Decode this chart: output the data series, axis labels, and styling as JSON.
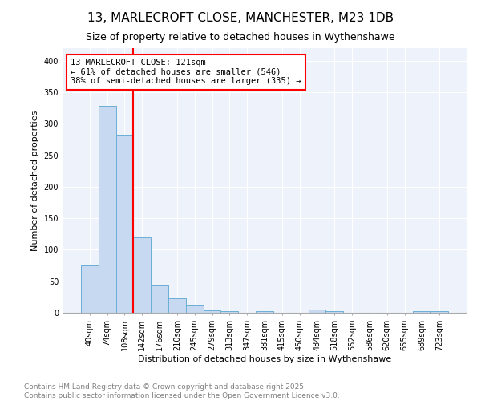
{
  "title": "13, MARLECROFT CLOSE, MANCHESTER, M23 1DB",
  "subtitle": "Size of property relative to detached houses in Wythenshawe",
  "xlabel": "Distribution of detached houses by size in Wythenshawe",
  "ylabel": "Number of detached properties",
  "bar_labels": [
    "40sqm",
    "74sqm",
    "108sqm",
    "142sqm",
    "176sqm",
    "210sqm",
    "245sqm",
    "279sqm",
    "313sqm",
    "347sqm",
    "381sqm",
    "415sqm",
    "450sqm",
    "484sqm",
    "518sqm",
    "552sqm",
    "586sqm",
    "620sqm",
    "655sqm",
    "689sqm",
    "723sqm"
  ],
  "bar_values": [
    75,
    328,
    283,
    120,
    44,
    23,
    13,
    4,
    3,
    0,
    3,
    0,
    0,
    5,
    2,
    0,
    0,
    0,
    0,
    2,
    3
  ],
  "bar_color": "#c6d9f1",
  "bar_edge_color": "#6baed6",
  "redline_x": 2.5,
  "annotation_text": "13 MARLECROFT CLOSE: 121sqm\n← 61% of detached houses are smaller (546)\n38% of semi-detached houses are larger (335) →",
  "annotation_box_color": "white",
  "annotation_box_edge_color": "red",
  "red_line_color": "red",
  "ylim": [
    0,
    420
  ],
  "yticks": [
    0,
    50,
    100,
    150,
    200,
    250,
    300,
    350,
    400
  ],
  "footer_line1": "Contains HM Land Registry data © Crown copyright and database right 2025.",
  "footer_line2": "Contains public sector information licensed under the Open Government Licence v3.0.",
  "bg_color": "#eef2fb",
  "title_fontsize": 11,
  "axis_label_fontsize": 8,
  "tick_fontsize": 7,
  "footer_fontsize": 6.5
}
